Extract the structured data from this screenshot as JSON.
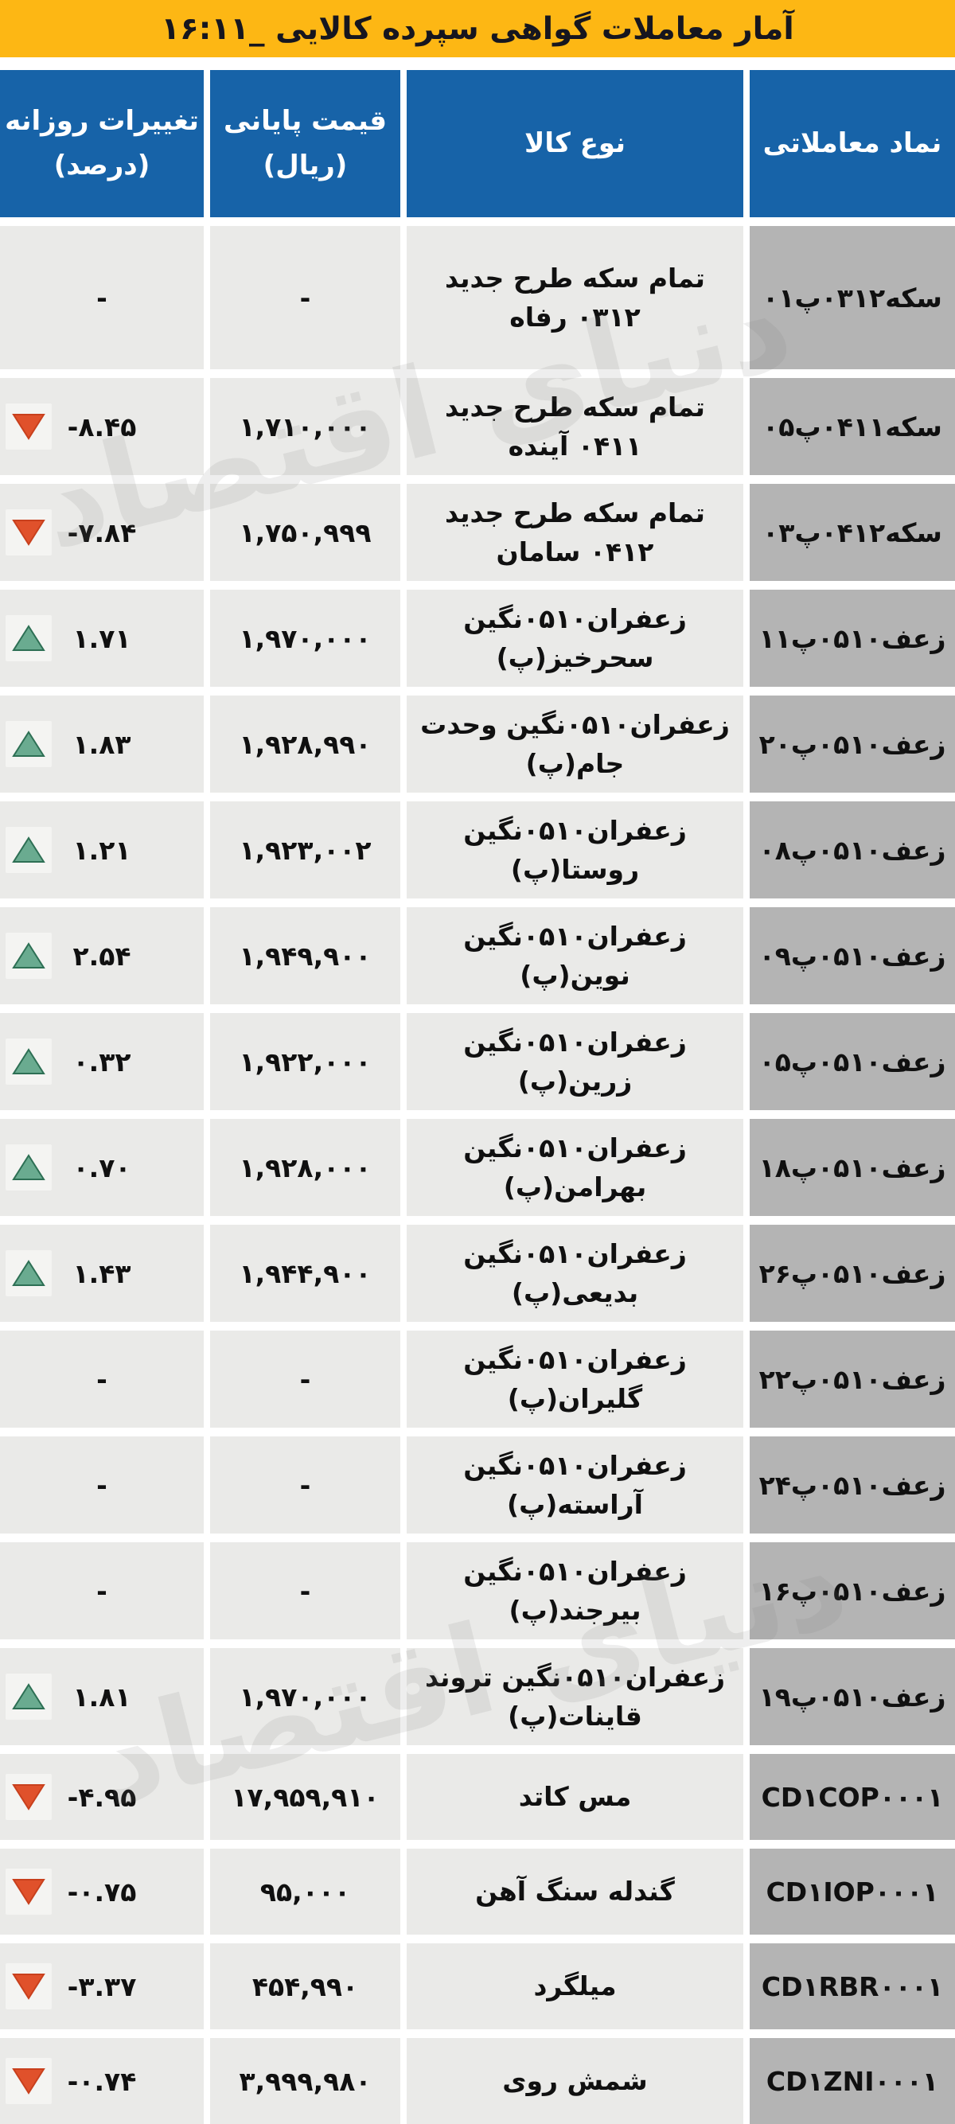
{
  "title": "آمار معاملات گواهی سپرده کالایی _۱۶:۱۱",
  "watermark": "دنیای اقتصاد",
  "colors": {
    "title_bg": "#fdb714",
    "header_bg": "#1763a8",
    "symbol_bg": "#b4b4b4",
    "cell_bg": "#eaeae8",
    "up_fill": "#6aab90",
    "up_stroke": "#2d6f54",
    "down_fill": "#e0512b",
    "down_stroke": "#c8401d"
  },
  "columns": {
    "symbol": "نماد معاملاتی",
    "commodity": "نوع کالا",
    "close_price_label": "قیمت پایانی",
    "close_price_unit": "(ریال)",
    "daily_change_label": "تغییرات روزانه",
    "daily_change_unit": "(درصد)"
  },
  "rows": [
    {
      "symbol": "سکه۰۳۱۲پ۰۱",
      "commodity": "تمام سکه طرح جدید ۰۳۱۲ رفاه",
      "price": "-",
      "change": "-",
      "trend": "none",
      "size": "tall"
    },
    {
      "symbol": "سکه۰۴۱۱پ۰۵",
      "commodity": "تمام سکه طرح جدید ۰۴۱۱ آینده",
      "price": "۱,۷۱۰,۰۰۰",
      "change": "-۸.۴۵",
      "trend": "down",
      "size": "normal"
    },
    {
      "symbol": "سکه۰۴۱۲پ۰۳",
      "commodity": "تمام سکه طرح جدید ۰۴۱۲ سامان",
      "price": "۱,۷۵۰,۹۹۹",
      "change": "-۷.۸۴",
      "trend": "down",
      "size": "normal"
    },
    {
      "symbol": "زعف۰۵۱۰پ۱۱",
      "commodity": "زعفران۰۵۱۰نگین سحرخیز(پ)",
      "price": "۱,۹۷۰,۰۰۰",
      "change": "۱.۷۱",
      "trend": "up",
      "size": "normal"
    },
    {
      "symbol": "زعف۰۵۱۰پ۲۰",
      "commodity": "زعفران۰۵۱۰نگین وحدت جام(پ)",
      "price": "۱,۹۲۸,۹۹۰",
      "change": "۱.۸۳",
      "trend": "up",
      "size": "normal"
    },
    {
      "symbol": "زعف۰۵۱۰پ۰۸",
      "commodity": "زعفران۰۵۱۰نگین روستا(پ)",
      "price": "۱,۹۲۳,۰۰۲",
      "change": "۱.۲۱",
      "trend": "up",
      "size": "normal"
    },
    {
      "symbol": "زعف۰۵۱۰پ۰۹",
      "commodity": "زعفران۰۵۱۰نگین نوین(پ)",
      "price": "۱,۹۴۹,۹۰۰",
      "change": "۲.۵۴",
      "trend": "up",
      "size": "normal"
    },
    {
      "symbol": "زعف۰۵۱۰پ۰۵",
      "commodity": "زعفران۰۵۱۰نگین زرین(پ)",
      "price": "۱,۹۲۲,۰۰۰",
      "change": "۰.۳۲",
      "trend": "up",
      "size": "normal"
    },
    {
      "symbol": "زعف۰۵۱۰پ۱۸",
      "commodity": "زعفران۰۵۱۰نگین بهرامن(پ)",
      "price": "۱,۹۲۸,۰۰۰",
      "change": "۰.۷۰",
      "trend": "up",
      "size": "normal"
    },
    {
      "symbol": "زعف۰۵۱۰پ۲۶",
      "commodity": "زعفران۰۵۱۰نگین بدیعی(پ)",
      "price": "۱,۹۴۴,۹۰۰",
      "change": "۱.۴۳",
      "trend": "up",
      "size": "normal"
    },
    {
      "symbol": "زعف۰۵۱۰پ۲۲",
      "commodity": "زعفران۰۵۱۰نگین گلیران(پ)",
      "price": "-",
      "change": "-",
      "trend": "none",
      "size": "normal"
    },
    {
      "symbol": "زعف۰۵۱۰پ۲۴",
      "commodity": "زعفران۰۵۱۰نگین آراسته(پ)",
      "price": "-",
      "change": "-",
      "trend": "none",
      "size": "normal"
    },
    {
      "symbol": "زعف۰۵۱۰پ۱۶",
      "commodity": "زعفران۰۵۱۰نگین بیرجند(پ)",
      "price": "-",
      "change": "-",
      "trend": "none",
      "size": "normal"
    },
    {
      "symbol": "زعف۰۵۱۰پ۱۹",
      "commodity": "زعفران۰۵۱۰نگین تروند قاینات(پ)",
      "price": "۱,۹۷۰,۰۰۰",
      "change": "۱.۸۱",
      "trend": "up",
      "size": "normal"
    },
    {
      "symbol": "CD۱COP۰۰۰۱",
      "commodity": "مس کاتد",
      "price": "۱۷,۹۵۹,۹۱۰",
      "change": "-۴.۹۵",
      "trend": "down",
      "size": "short"
    },
    {
      "symbol": "CD۱IOP۰۰۰۱",
      "commodity": "گندله سنگ آهن",
      "price": "۹۵,۰۰۰",
      "change": "-۰.۷۵",
      "trend": "down",
      "size": "short"
    },
    {
      "symbol": "CD۱RBR۰۰۰۱",
      "commodity": "میلگرد",
      "price": "۴۵۴,۹۹۰",
      "change": "-۳.۳۷",
      "trend": "down",
      "size": "short"
    },
    {
      "symbol": "CD۱ZNI۰۰۰۱",
      "commodity": "شمش روی",
      "price": "۳,۹۹۹,۹۸۰",
      "change": "-۰.۷۴",
      "trend": "down",
      "size": "short"
    }
  ],
  "chart_data": {
    "type": "table",
    "title": "آمار معاملات گواهی سپرده کالایی _۱۶:۱۱",
    "columns": [
      "نماد معاملاتی",
      "نوع کالا",
      "قیمت پایانی (ریال)",
      "تغییرات روزانه (درصد)"
    ],
    "rows": [
      {
        "symbol": "سکه۰۳۱۲پ۰۱",
        "commodity": "تمام سکه طرح جدید ۰۳۱۲ رفاه",
        "close_price": null,
        "change_pct": null,
        "trend": "none"
      },
      {
        "symbol": "سکه۰۴۱۱پ۰۵",
        "commodity": "تمام سکه طرح جدید ۰۴۱۱ آینده",
        "close_price": 1710000,
        "change_pct": -8.45,
        "trend": "down"
      },
      {
        "symbol": "سکه۰۴۱۲پ۰۳",
        "commodity": "تمام سکه طرح جدید ۰۴۱۲ سامان",
        "close_price": 1750999,
        "change_pct": -7.84,
        "trend": "down"
      },
      {
        "symbol": "زعف۰۵۱۰پ۱۱",
        "commodity": "زعفران۰۵۱۰نگین سحرخیز(پ)",
        "close_price": 1970000,
        "change_pct": 1.71,
        "trend": "up"
      },
      {
        "symbol": "زعف۰۵۱۰پ۲۰",
        "commodity": "زعفران۰۵۱۰نگین وحدت جام(پ)",
        "close_price": 1928990,
        "change_pct": 1.83,
        "trend": "up"
      },
      {
        "symbol": "زعف۰۵۱۰پ۰۸",
        "commodity": "زعفران۰۵۱۰نگین روستا(پ)",
        "close_price": 1923002,
        "change_pct": 1.21,
        "trend": "up"
      },
      {
        "symbol": "زعف۰۵۱۰پ۰۹",
        "commodity": "زعفران۰۵۱۰نگین نوین(پ)",
        "close_price": 1949900,
        "change_pct": 2.54,
        "trend": "up"
      },
      {
        "symbol": "زعف۰۵۱۰پ۰۵",
        "commodity": "زعفران۰۵۱۰نگین زرین(پ)",
        "close_price": 1922000,
        "change_pct": 0.32,
        "trend": "up"
      },
      {
        "symbol": "زعف۰۵۱۰پ۱۸",
        "commodity": "زعفران۰۵۱۰نگین بهرامن(پ)",
        "close_price": 1928000,
        "change_pct": 0.7,
        "trend": "up"
      },
      {
        "symbol": "زعف۰۵۱۰پ۲۶",
        "commodity": "زعفران۰۵۱۰نگین بدیعی(پ)",
        "close_price": 1944900,
        "change_pct": 1.43,
        "trend": "up"
      },
      {
        "symbol": "زعف۰۵۱۰پ۲۲",
        "commodity": "زعفران۰۵۱۰نگین گلیران(پ)",
        "close_price": null,
        "change_pct": null,
        "trend": "none"
      },
      {
        "symbol": "زعف۰۵۱۰پ۲۴",
        "commodity": "زعفران۰۵۱۰نگین آراسته(پ)",
        "close_price": null,
        "change_pct": null,
        "trend": "none"
      },
      {
        "symbol": "زعف۰۵۱۰پ۱۶",
        "commodity": "زعفران۰۵۱۰نگین بیرجند(پ)",
        "close_price": null,
        "change_pct": null,
        "trend": "none"
      },
      {
        "symbol": "زعف۰۵۱۰پ۱۹",
        "commodity": "زعفران۰۵۱۰نگین تروند قاینات(پ)",
        "close_price": 1970000,
        "change_pct": 1.81,
        "trend": "up"
      },
      {
        "symbol": "CD1COP0001",
        "commodity": "مس کاتد",
        "close_price": 17959910,
        "change_pct": -4.95,
        "trend": "down"
      },
      {
        "symbol": "CD1IOP0001",
        "commodity": "گندله سنگ آهن",
        "close_price": 95000,
        "change_pct": -0.75,
        "trend": "down"
      },
      {
        "symbol": "CD1RBR0001",
        "commodity": "میلگرد",
        "close_price": 454990,
        "change_pct": -3.37,
        "trend": "down"
      },
      {
        "symbol": "CD1ZNI0001",
        "commodity": "شمش روی",
        "close_price": 3999980,
        "change_pct": -0.74,
        "trend": "down"
      }
    ]
  }
}
